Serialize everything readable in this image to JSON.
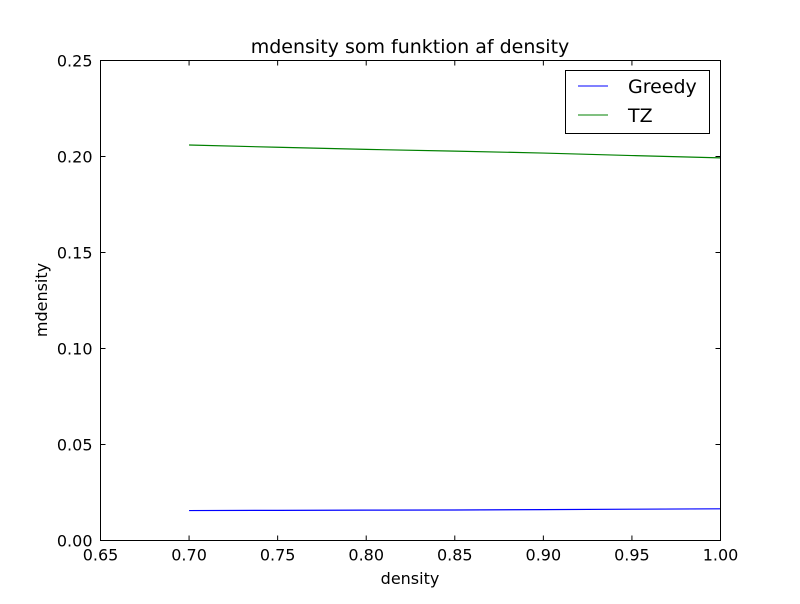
{
  "chart_data": {
    "type": "line",
    "title": "mdensity som funktion af density",
    "xlabel": "density",
    "ylabel": "mdensity",
    "xlim": [
      0.65,
      1.0
    ],
    "ylim": [
      0.0,
      0.25
    ],
    "x_ticks": [
      "0.65",
      "0.70",
      "0.75",
      "0.80",
      "0.85",
      "0.90",
      "0.95",
      "1.00"
    ],
    "y_ticks": [
      "0.00",
      "0.05",
      "0.10",
      "0.15",
      "0.20",
      "0.25"
    ],
    "grid": false,
    "legend_position": "top-right",
    "series": [
      {
        "name": "Greedy",
        "color": "#0000ff",
        "x": [
          0.7,
          0.75,
          0.8,
          0.85,
          0.9,
          0.95,
          1.0
        ],
        "y": [
          0.0156,
          0.0157,
          0.0158,
          0.0159,
          0.0161,
          0.0163,
          0.0165
        ]
      },
      {
        "name": "TZ",
        "color": "#008000",
        "x": [
          0.7,
          0.75,
          0.8,
          0.85,
          0.9,
          0.95,
          1.0
        ],
        "y": [
          0.206,
          0.2048,
          0.2037,
          0.2028,
          0.2018,
          0.2005,
          0.1993
        ]
      }
    ]
  }
}
